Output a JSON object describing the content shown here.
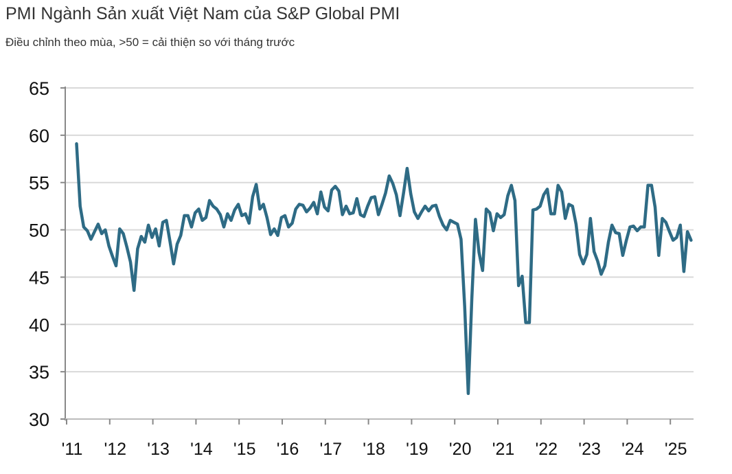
{
  "chart_data": {
    "type": "line",
    "title": "PMI Ngành Sản xuất Việt Nam của S&P Global PMI",
    "subtitle": "Điều chỉnh theo mùa, >50 = cải thiện so với tháng trước",
    "xlabel": "",
    "ylabel": "",
    "ylim": [
      30,
      65
    ],
    "yticks": [
      "30",
      "35",
      "40",
      "45",
      "50",
      "55",
      "60",
      "65"
    ],
    "xticks": [
      "'11",
      "'12",
      "'13",
      "'14",
      "'15",
      "'16",
      "'17",
      "'18",
      "'19",
      "'20",
      "'21",
      "'22",
      "'23",
      "'24",
      "'25"
    ],
    "grid": true,
    "color": "#2e6b85",
    "start": "2011-03",
    "frequency": "monthly",
    "series": [
      {
        "name": "PMI",
        "values": [
          59.1,
          52.5,
          50.3,
          49.9,
          49.0,
          49.8,
          50.6,
          49.6,
          50.0,
          48.3,
          47.2,
          46.2,
          50.1,
          49.6,
          48.2,
          46.6,
          43.6,
          48.0,
          49.3,
          48.7,
          50.5,
          49.2,
          50.1,
          48.3,
          50.8,
          51.0,
          48.8,
          46.4,
          48.5,
          49.4,
          51.5,
          51.5,
          50.3,
          51.8,
          52.2,
          51.0,
          51.3,
          53.1,
          52.5,
          52.2,
          51.6,
          50.3,
          51.7,
          51.0,
          52.1,
          52.7,
          51.5,
          51.7,
          50.7,
          53.5,
          54.8,
          52.2,
          52.7,
          51.3,
          49.5,
          50.1,
          49.4,
          51.3,
          51.5,
          50.3,
          50.7,
          52.2,
          52.7,
          52.6,
          51.9,
          52.3,
          52.9,
          51.7,
          54.0,
          52.4,
          52.0,
          54.2,
          54.6,
          54.1,
          51.6,
          52.5,
          51.7,
          51.8,
          53.3,
          51.6,
          51.4,
          52.5,
          53.4,
          53.5,
          51.6,
          52.7,
          53.9,
          55.7,
          54.9,
          53.7,
          51.5,
          53.9,
          56.5,
          53.8,
          51.9,
          51.2,
          51.9,
          52.5,
          52.0,
          52.5,
          52.6,
          51.4,
          50.5,
          50.0,
          51.0,
          50.8,
          50.6,
          49.0,
          41.9,
          32.7,
          42.7,
          51.1,
          47.6,
          45.7,
          52.2,
          51.8,
          49.9,
          51.7,
          51.3,
          51.6,
          53.6,
          54.7,
          53.1,
          44.1,
          45.1,
          40.2,
          40.2,
          52.1,
          52.2,
          52.5,
          53.7,
          54.3,
          51.7,
          51.7,
          54.7,
          54.0,
          51.2,
          52.7,
          52.5,
          50.6,
          47.4,
          46.4,
          47.4,
          51.2,
          47.7,
          46.7,
          45.3,
          46.2,
          48.7,
          50.5,
          49.7,
          49.6,
          47.3,
          48.9,
          50.3,
          50.4,
          49.9,
          50.3,
          50.3,
          54.7,
          54.7,
          52.4,
          47.3,
          51.2,
          50.8,
          49.8,
          48.9,
          49.2,
          50.5,
          45.6,
          49.8,
          48.9
        ]
      }
    ]
  }
}
